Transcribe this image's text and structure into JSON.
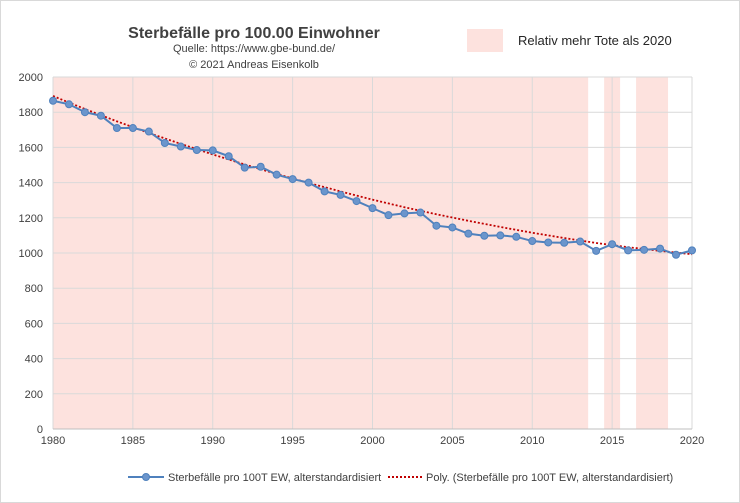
{
  "chart_data": {
    "type": "line",
    "title": "Sterbefälle pro 100.00 Einwohner",
    "subtitle_lines": [
      "Quelle: https://www.gbe-bund.de/",
      "© 2021 Andreas Eisenkolb"
    ],
    "xlim": [
      1980,
      2020
    ],
    "ylim": [
      0,
      2000
    ],
    "x_ticks": [
      1980,
      1985,
      1990,
      1995,
      2000,
      2005,
      2010,
      2015,
      2020
    ],
    "y_ticks": [
      0,
      200,
      400,
      600,
      800,
      1000,
      1200,
      1400,
      1600,
      1800,
      2000
    ],
    "x_tick_labels": [
      "1980",
      "1985",
      "1990",
      "1995",
      "2000",
      "2005",
      "2010",
      "2015",
      "2020"
    ],
    "y_tick_labels": [
      "0",
      "200",
      "400",
      "600",
      "800",
      "1000",
      "1200",
      "1400",
      "1600",
      "1800",
      "2000"
    ],
    "grid": {
      "horizontal": true,
      "vertical": true
    },
    "shaded_label": "Relativ mehr Tote als 2020",
    "shaded_color": "#fde2de",
    "shaded_ranges": [
      [
        1980,
        2013.5
      ],
      [
        2014.5,
        2015.5
      ],
      [
        2016.5,
        2018.5
      ]
    ],
    "series": [
      {
        "name": "Sterbefälle pro 100T EW, alterstandardisiert",
        "color": "#4f81bd",
        "marker_color": "#6b95cc",
        "x": [
          1980,
          1981,
          1982,
          1983,
          1984,
          1985,
          1986,
          1987,
          1988,
          1989,
          1990,
          1991,
          1992,
          1993,
          1994,
          1995,
          1996,
          1997,
          1998,
          1999,
          2000,
          2001,
          2002,
          2003,
          2004,
          2005,
          2006,
          2007,
          2008,
          2009,
          2010,
          2011,
          2012,
          2013,
          2014,
          2015,
          2016,
          2017,
          2018,
          2019,
          2020
        ],
        "values": [
          1865,
          1845,
          1800,
          1780,
          1710,
          1710,
          1690,
          1625,
          1605,
          1585,
          1583,
          1550,
          1485,
          1490,
          1445,
          1420,
          1400,
          1350,
          1330,
          1295,
          1255,
          1215,
          1225,
          1230,
          1155,
          1145,
          1110,
          1098,
          1100,
          1092,
          1068,
          1060,
          1058,
          1065,
          1012,
          1050,
          1015,
          1018,
          1025,
          990,
          1015
        ]
      },
      {
        "name": "Poly. (Sterbefälle pro 100T EW, alterstandardisiert)",
        "color": "#c00000",
        "style": "dotted",
        "x": [
          1980,
          1982,
          1984,
          1986,
          1988,
          1990,
          1992,
          1994,
          1996,
          1998,
          2000,
          2002,
          2004,
          2006,
          2008,
          2010,
          2012,
          2014,
          2016,
          2018,
          2020
        ],
        "values": [
          1892,
          1818,
          1748,
          1682,
          1620,
          1560,
          1503,
          1449,
          1398,
          1350,
          1303,
          1260,
          1220,
          1183,
          1148,
          1115,
          1085,
          1057,
          1033,
          1012,
          993
        ]
      }
    ],
    "legend_position": "bottom"
  }
}
